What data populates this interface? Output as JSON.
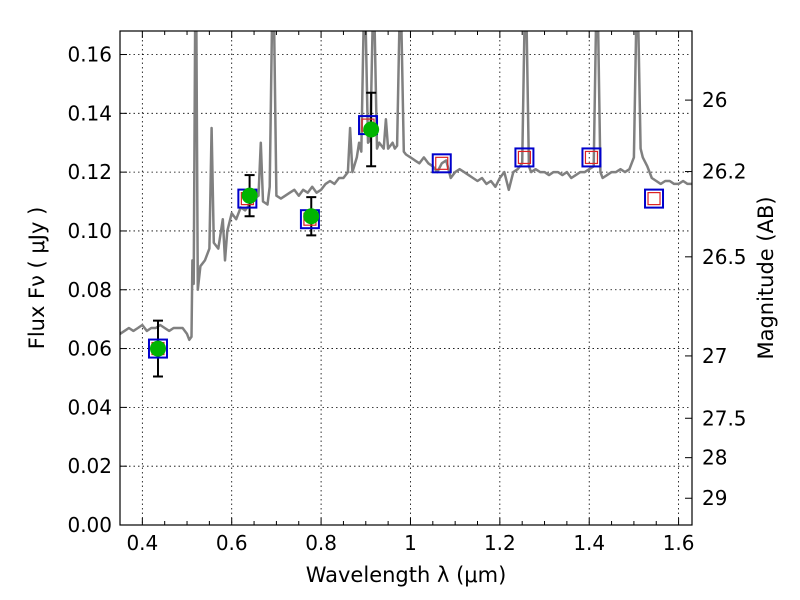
{
  "chart_data": {
    "type": "scatter",
    "xlabel": "Wavelength  λ (μm)",
    "ylabel": "Flux  Fν  ( μJy )",
    "ylabel_right": "Magnitude (AB)",
    "xlim": [
      0.35,
      1.63
    ],
    "ylim": [
      0.0,
      0.168
    ],
    "grid": true,
    "x_ticks": [
      0.4,
      0.6,
      0.8,
      1.0,
      1.2,
      1.4,
      1.6
    ],
    "x_tick_labels": [
      "0.4",
      "0.6",
      "0.8",
      "1",
      "1.2",
      "1.4",
      "1.6"
    ],
    "y_ticks": [
      0.0,
      0.02,
      0.04,
      0.06,
      0.08,
      0.1,
      0.12,
      0.14,
      0.16
    ],
    "y_tick_labels": [
      "0.00",
      "0.02",
      "0.04",
      "0.06",
      "0.08",
      "0.10",
      "0.12",
      "0.14",
      "0.16"
    ],
    "right_ticks": [
      {
        "label": "26",
        "flux": 0.1445
      },
      {
        "label": "26.2",
        "flux": 0.1202
      },
      {
        "label": "26.5",
        "flux": 0.0912
      },
      {
        "label": "27",
        "flux": 0.0575
      },
      {
        "label": "27.5",
        "flux": 0.0363
      },
      {
        "label": "28",
        "flux": 0.0229
      },
      {
        "label": "29",
        "flux": 0.0091
      }
    ],
    "series": [
      {
        "kind": "spectrum",
        "color": "#808080",
        "points": [
          [
            0.35,
            0.065
          ],
          [
            0.36,
            0.066
          ],
          [
            0.37,
            0.067
          ],
          [
            0.38,
            0.066
          ],
          [
            0.39,
            0.067
          ],
          [
            0.4,
            0.068
          ],
          [
            0.41,
            0.066
          ],
          [
            0.42,
            0.067
          ],
          [
            0.43,
            0.067
          ],
          [
            0.44,
            0.068
          ],
          [
            0.45,
            0.067
          ],
          [
            0.46,
            0.066
          ],
          [
            0.47,
            0.067
          ],
          [
            0.48,
            0.067
          ],
          [
            0.49,
            0.067
          ],
          [
            0.5,
            0.065
          ],
          [
            0.505,
            0.063
          ],
          [
            0.51,
            0.064
          ],
          [
            0.512,
            0.09
          ],
          [
            0.515,
            0.082
          ],
          [
            0.518,
            0.168
          ],
          [
            0.521,
            0.168
          ],
          [
            0.524,
            0.08
          ],
          [
            0.53,
            0.088
          ],
          [
            0.54,
            0.09
          ],
          [
            0.55,
            0.094
          ],
          [
            0.555,
            0.135
          ],
          [
            0.56,
            0.096
          ],
          [
            0.57,
            0.094
          ],
          [
            0.58,
            0.104
          ],
          [
            0.585,
            0.09
          ],
          [
            0.59,
            0.1
          ],
          [
            0.6,
            0.106
          ],
          [
            0.61,
            0.104
          ],
          [
            0.62,
            0.108
          ],
          [
            0.63,
            0.107
          ],
          [
            0.64,
            0.109
          ],
          [
            0.65,
            0.111
          ],
          [
            0.66,
            0.112
          ],
          [
            0.665,
            0.13
          ],
          [
            0.67,
            0.11
          ],
          [
            0.68,
            0.109
          ],
          [
            0.685,
            0.115
          ],
          [
            0.69,
            0.168
          ],
          [
            0.695,
            0.168
          ],
          [
            0.7,
            0.112
          ],
          [
            0.71,
            0.111
          ],
          [
            0.72,
            0.112
          ],
          [
            0.73,
            0.113
          ],
          [
            0.74,
            0.114
          ],
          [
            0.75,
            0.112
          ],
          [
            0.76,
            0.114
          ],
          [
            0.77,
            0.113
          ],
          [
            0.78,
            0.115
          ],
          [
            0.79,
            0.113
          ],
          [
            0.8,
            0.114
          ],
          [
            0.81,
            0.116
          ],
          [
            0.82,
            0.117
          ],
          [
            0.83,
            0.116
          ],
          [
            0.84,
            0.118
          ],
          [
            0.85,
            0.118
          ],
          [
            0.86,
            0.12
          ],
          [
            0.865,
            0.135
          ],
          [
            0.87,
            0.12
          ],
          [
            0.88,
            0.125
          ],
          [
            0.885,
            0.13
          ],
          [
            0.89,
            0.127
          ],
          [
            0.895,
            0.168
          ],
          [
            0.9,
            0.168
          ],
          [
            0.905,
            0.13
          ],
          [
            0.91,
            0.131
          ],
          [
            0.915,
            0.168
          ],
          [
            0.92,
            0.168
          ],
          [
            0.925,
            0.128
          ],
          [
            0.93,
            0.13
          ],
          [
            0.94,
            0.128
          ],
          [
            0.945,
            0.138
          ],
          [
            0.95,
            0.128
          ],
          [
            0.96,
            0.13
          ],
          [
            0.965,
            0.128
          ],
          [
            0.97,
            0.129
          ],
          [
            0.975,
            0.168
          ],
          [
            0.98,
            0.168
          ],
          [
            0.985,
            0.127
          ],
          [
            0.99,
            0.126
          ],
          [
            1.0,
            0.125
          ],
          [
            1.01,
            0.124
          ],
          [
            1.02,
            0.123
          ],
          [
            1.03,
            0.125
          ],
          [
            1.04,
            0.123
          ],
          [
            1.05,
            0.122
          ],
          [
            1.06,
            0.12
          ],
          [
            1.07,
            0.123
          ],
          [
            1.08,
            0.124
          ],
          [
            1.09,
            0.118
          ],
          [
            1.1,
            0.12
          ],
          [
            1.11,
            0.121
          ],
          [
            1.12,
            0.12
          ],
          [
            1.13,
            0.119
          ],
          [
            1.14,
            0.118
          ],
          [
            1.15,
            0.117
          ],
          [
            1.16,
            0.118
          ],
          [
            1.17,
            0.116
          ],
          [
            1.18,
            0.117
          ],
          [
            1.19,
            0.115
          ],
          [
            1.2,
            0.118
          ],
          [
            1.21,
            0.12
          ],
          [
            1.22,
            0.114
          ],
          [
            1.23,
            0.12
          ],
          [
            1.24,
            0.121
          ],
          [
            1.25,
            0.123
          ],
          [
            1.255,
            0.168
          ],
          [
            1.26,
            0.168
          ],
          [
            1.265,
            0.122
          ],
          [
            1.27,
            0.12
          ],
          [
            1.28,
            0.121
          ],
          [
            1.29,
            0.12
          ],
          [
            1.3,
            0.12
          ],
          [
            1.31,
            0.119
          ],
          [
            1.32,
            0.12
          ],
          [
            1.33,
            0.12
          ],
          [
            1.34,
            0.119
          ],
          [
            1.35,
            0.12
          ],
          [
            1.36,
            0.118
          ],
          [
            1.37,
            0.119
          ],
          [
            1.38,
            0.12
          ],
          [
            1.39,
            0.12
          ],
          [
            1.4,
            0.121
          ],
          [
            1.41,
            0.122
          ],
          [
            1.415,
            0.168
          ],
          [
            1.42,
            0.168
          ],
          [
            1.425,
            0.12
          ],
          [
            1.43,
            0.118
          ],
          [
            1.44,
            0.119
          ],
          [
            1.45,
            0.12
          ],
          [
            1.46,
            0.12
          ],
          [
            1.47,
            0.121
          ],
          [
            1.48,
            0.12
          ],
          [
            1.49,
            0.121
          ],
          [
            1.5,
            0.125
          ],
          [
            1.505,
            0.168
          ],
          [
            1.51,
            0.168
          ],
          [
            1.515,
            0.128
          ],
          [
            1.52,
            0.125
          ],
          [
            1.53,
            0.122
          ],
          [
            1.54,
            0.118
          ],
          [
            1.55,
            0.117
          ],
          [
            1.56,
            0.116
          ],
          [
            1.57,
            0.117
          ],
          [
            1.58,
            0.117
          ],
          [
            1.59,
            0.116
          ],
          [
            1.6,
            0.116
          ],
          [
            1.61,
            0.117
          ],
          [
            1.62,
            0.116
          ],
          [
            1.63,
            0.116
          ]
        ]
      },
      {
        "kind": "model-photometry",
        "marker": "open-square",
        "outer_color": "#0000cc",
        "inner_color": "#dd2222",
        "points": [
          {
            "x": 0.435,
            "y": 0.06
          },
          {
            "x": 0.635,
            "y": 0.111
          },
          {
            "x": 0.775,
            "y": 0.104
          },
          {
            "x": 0.905,
            "y": 0.136
          },
          {
            "x": 1.07,
            "y": 0.123
          },
          {
            "x": 1.255,
            "y": 0.125
          },
          {
            "x": 1.405,
            "y": 0.125
          },
          {
            "x": 1.545,
            "y": 0.111
          }
        ]
      },
      {
        "kind": "observed",
        "marker": "filled-circle",
        "color": "#00b400",
        "points": [
          {
            "x": 0.435,
            "y": 0.06,
            "err": 0.0095
          },
          {
            "x": 0.64,
            "y": 0.112,
            "err": 0.007
          },
          {
            "x": 0.778,
            "y": 0.105,
            "err": 0.0065
          },
          {
            "x": 0.912,
            "y": 0.1345,
            "err": 0.0125
          }
        ]
      }
    ]
  }
}
